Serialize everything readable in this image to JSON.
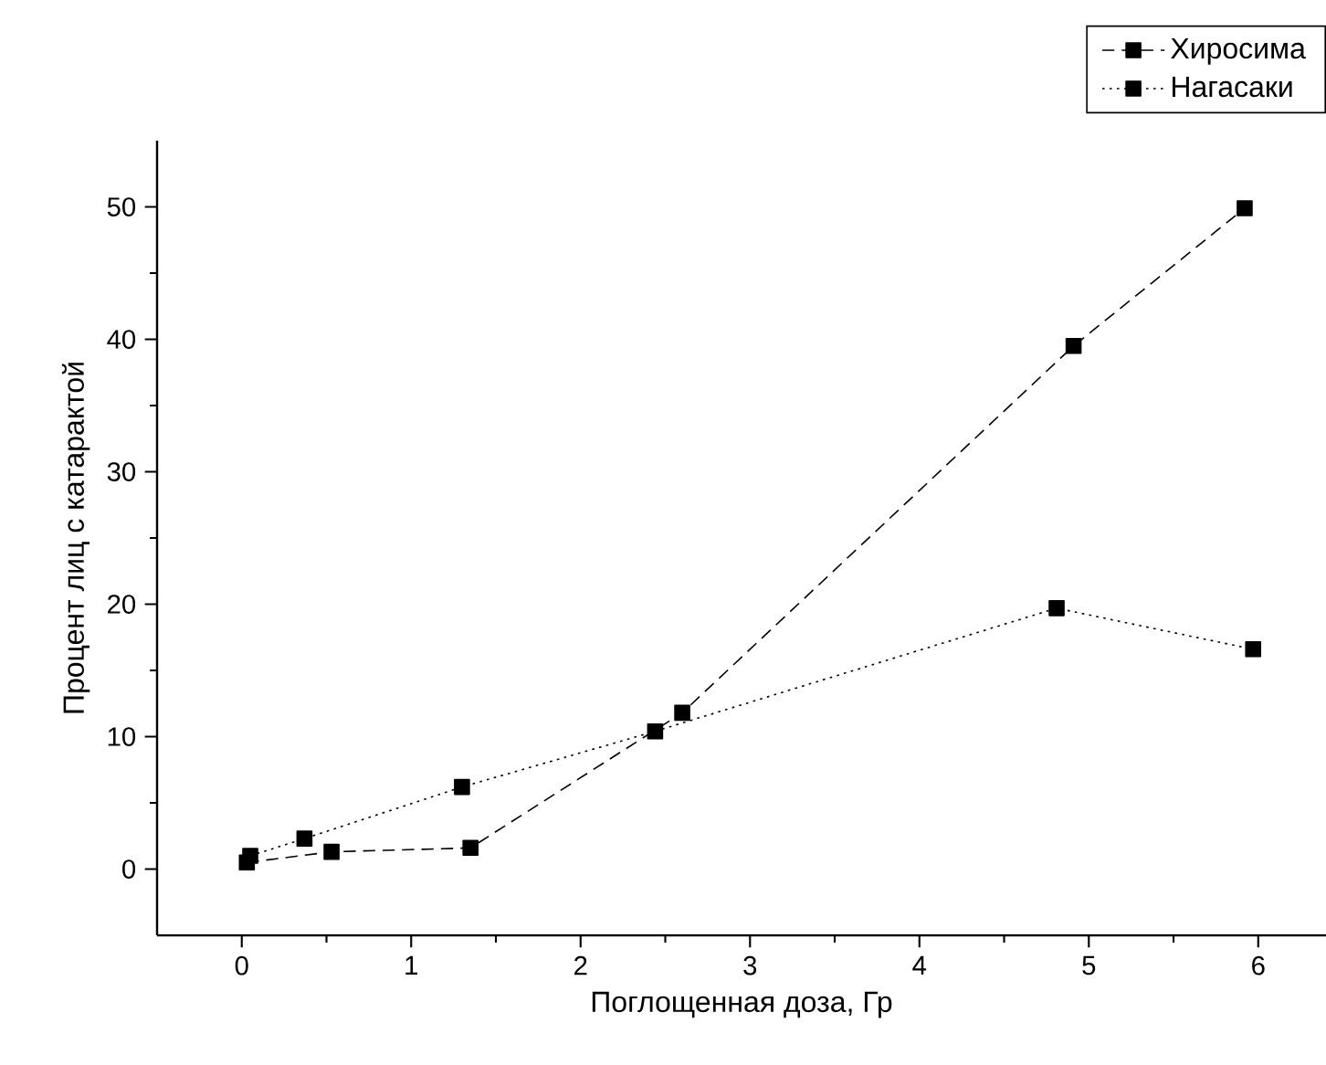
{
  "chart_data": {
    "type": "line",
    "xlabel": "Поглощенная доза, Гр",
    "ylabel": "Процент лиц с катарактой",
    "xlim": [
      -0.5,
      6.4
    ],
    "xticks": [
      0,
      1,
      2,
      3,
      4,
      5,
      6
    ],
    "ylim": [
      -5,
      55
    ],
    "yticks": [
      0,
      10,
      20,
      30,
      40,
      50
    ],
    "marker": "square",
    "legend": "top right",
    "grid": false,
    "series": [
      {
        "name": "Хиросима",
        "color": "#000000",
        "line_style": "dashed",
        "x": [
          0.03,
          0.53,
          1.35,
          2.6,
          4.91,
          5.92
        ],
        "values": [
          0.5,
          1.3,
          1.6,
          11.8,
          39.5,
          49.9
        ]
      },
      {
        "name": "Нагасаки",
        "color": "#000000",
        "line_style": "dotted",
        "x": [
          0.05,
          0.37,
          1.3,
          2.44,
          4.81,
          5.97
        ],
        "values": [
          1.0,
          2.3,
          6.2,
          10.4,
          19.7,
          16.6
        ]
      }
    ]
  }
}
